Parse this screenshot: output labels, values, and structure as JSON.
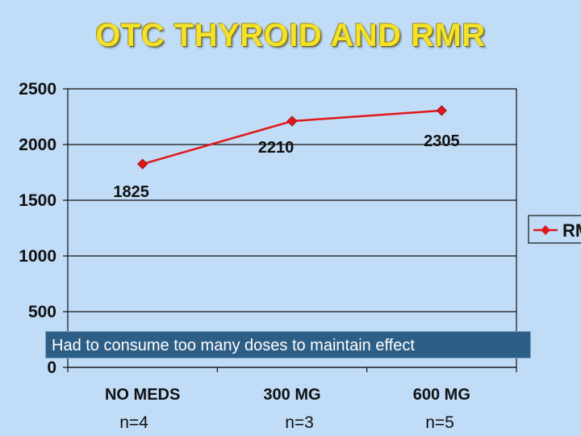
{
  "title": "OTC THYROID AND RMR",
  "chart_data": {
    "type": "line",
    "categories": [
      "NO MEDS",
      "300 MG",
      "600 MG"
    ],
    "series": [
      {
        "name": "RMR",
        "values": [
          1825,
          2210,
          2305
        ],
        "color": "#e0181c"
      }
    ],
    "data_labels": [
      "1825",
      "2210",
      "2305"
    ],
    "ylim": [
      0,
      2500
    ],
    "yticks": [
      0,
      500,
      1000,
      1500,
      2000,
      2500
    ],
    "legend_label": "RM",
    "legend_position": "right",
    "grid": true
  },
  "note": "Had to consume too many doses to maintain effect",
  "sample_sizes": [
    "n=4",
    "n=3",
    "n=5"
  ]
}
